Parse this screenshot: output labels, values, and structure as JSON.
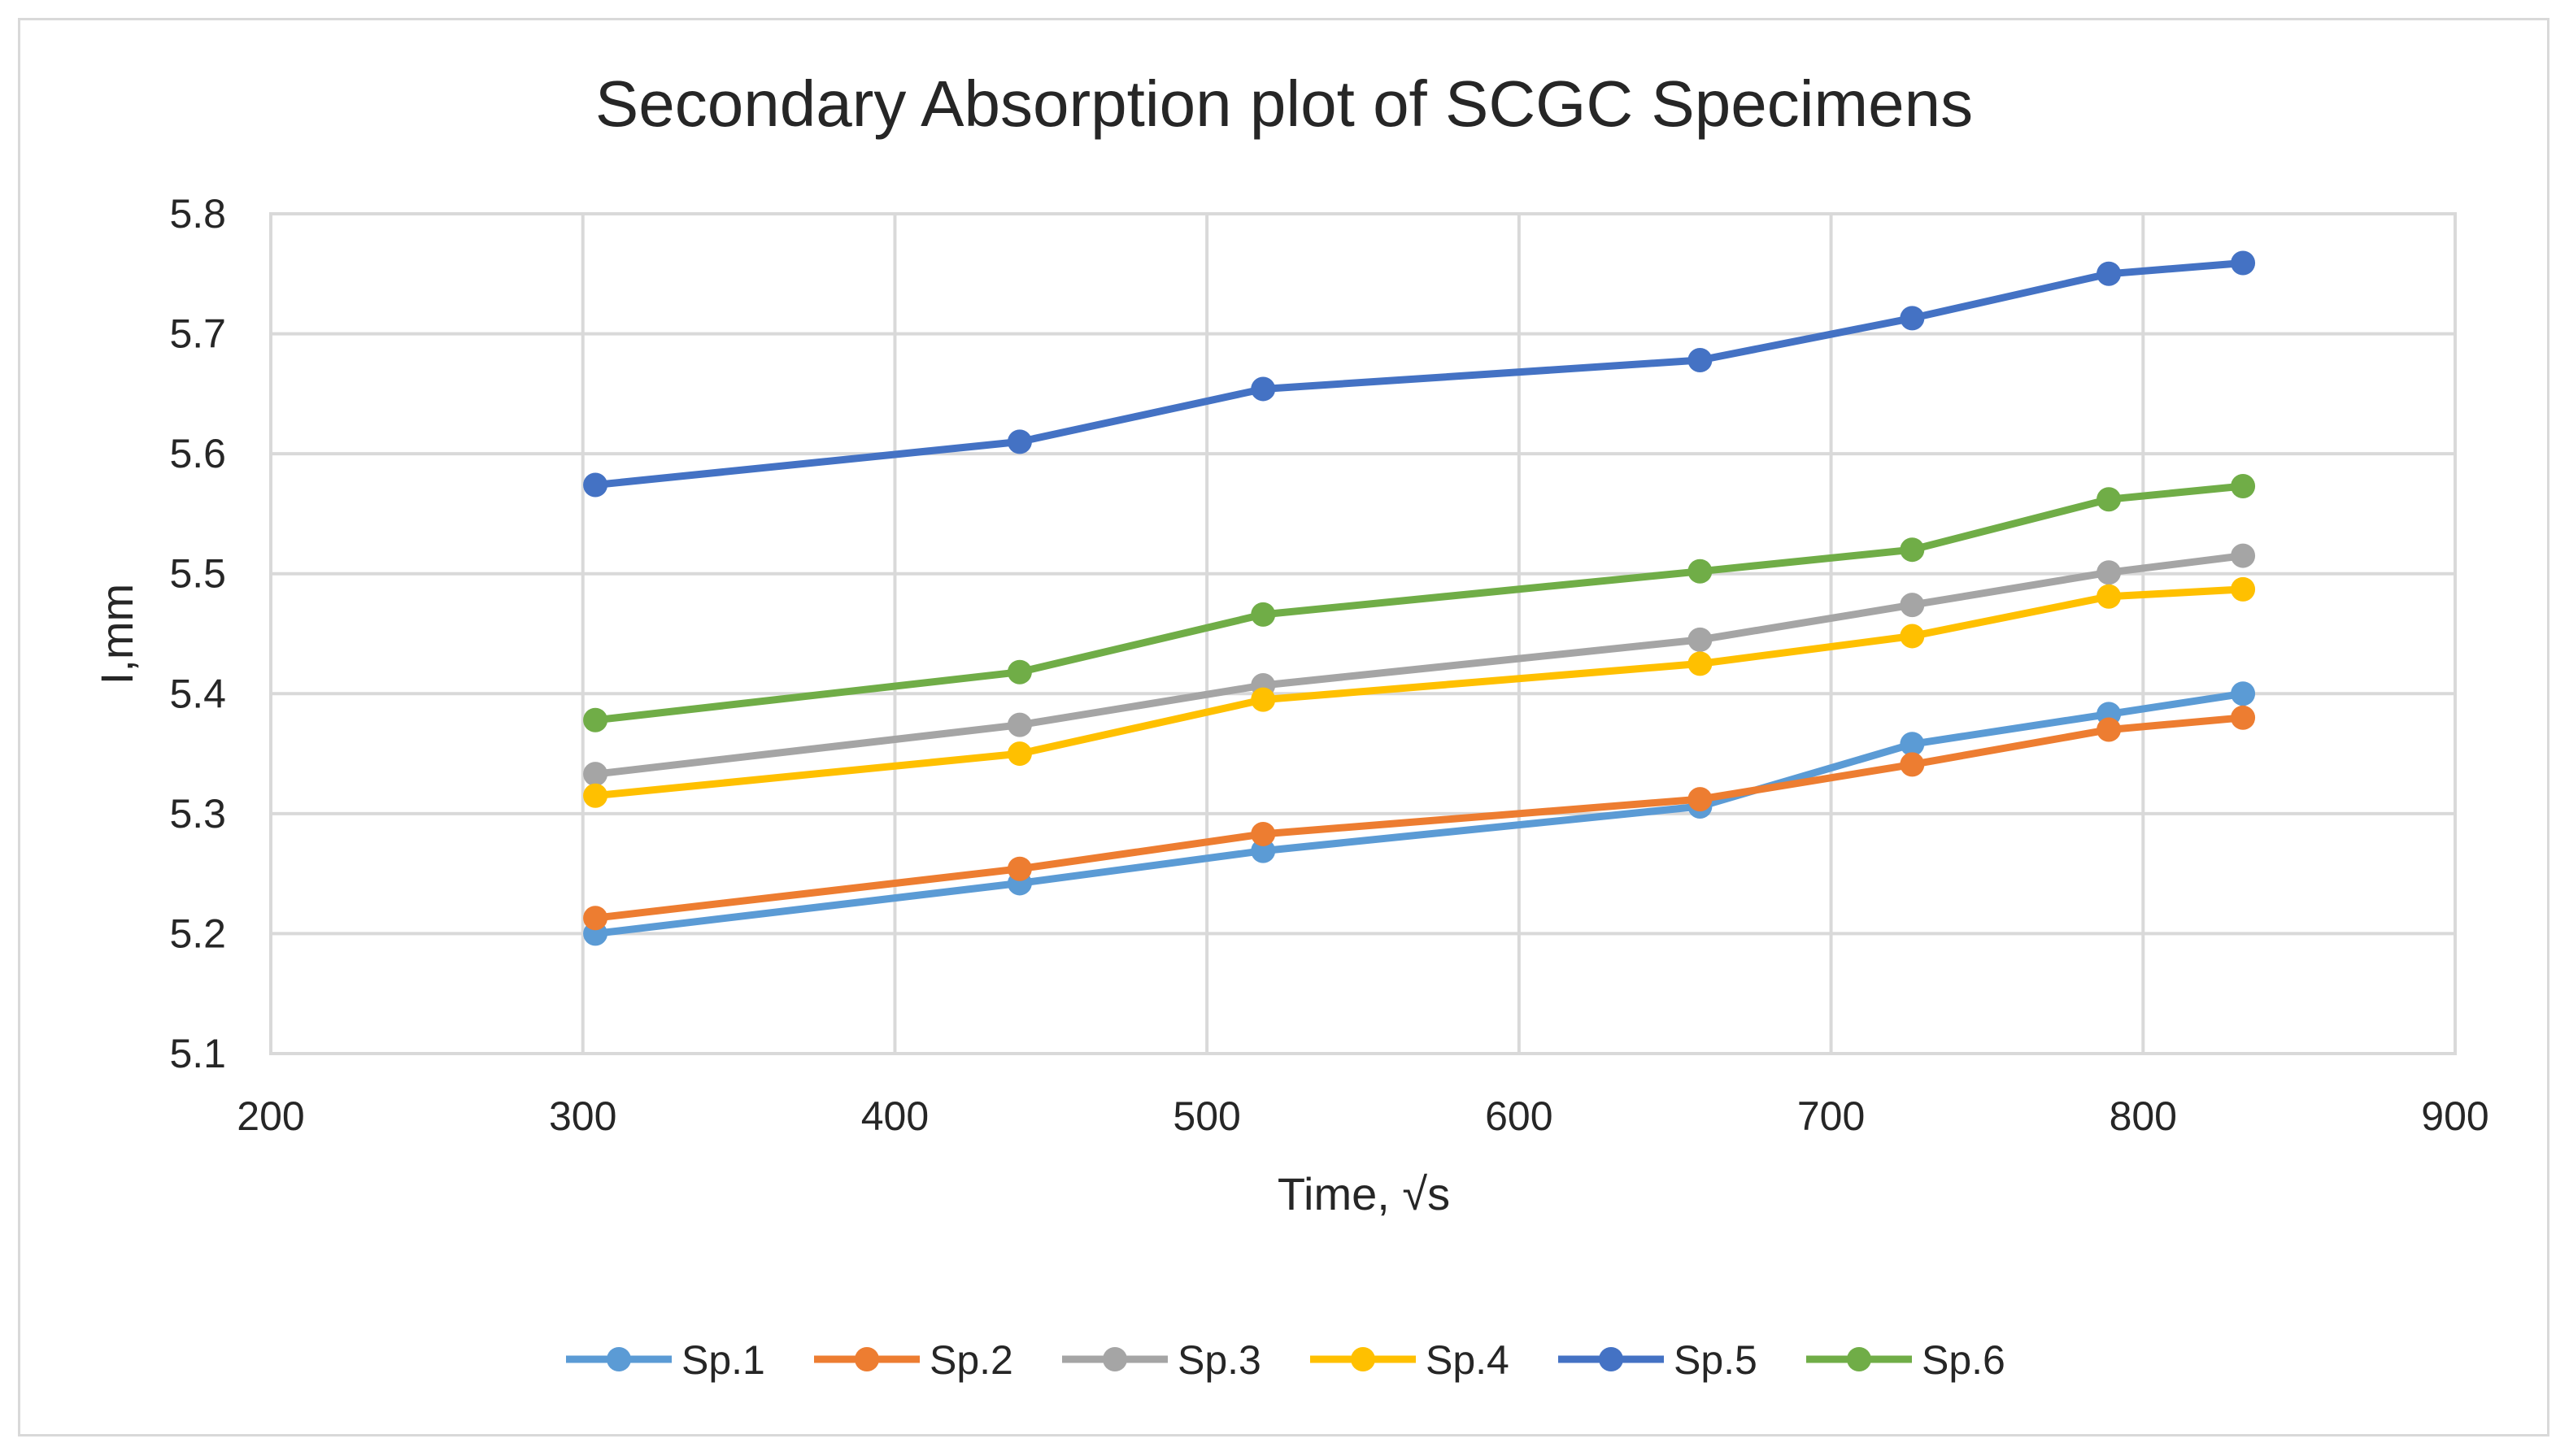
{
  "chart_data": {
    "type": "line",
    "title": "Secondary Absorption plot of SCGC Specimens",
    "xlabel": "Time, √s",
    "ylabel": "I,mm",
    "xlim": [
      200,
      900
    ],
    "ylim": [
      5.1,
      5.8
    ],
    "xticks": [
      "200",
      "300",
      "400",
      "500",
      "600",
      "700",
      "800",
      "900"
    ],
    "yticks": [
      "5.1",
      "5.2",
      "5.3",
      "5.4",
      "5.5",
      "5.6",
      "5.7",
      "5.8"
    ],
    "grid": true,
    "legend_position": "bottom",
    "x": [
      304,
      440,
      518,
      658,
      726,
      789,
      832
    ],
    "series": [
      {
        "name": "Sp.1",
        "color": "#5b9bd5",
        "values": [
          5.2,
          5.242,
          5.269,
          5.306,
          5.358,
          5.383,
          5.4
        ]
      },
      {
        "name": "Sp.2",
        "color": "#ed7d31",
        "values": [
          5.213,
          5.254,
          5.283,
          5.312,
          5.341,
          5.37,
          5.38
        ]
      },
      {
        "name": "Sp.3",
        "color": "#a5a5a5",
        "values": [
          5.333,
          5.374,
          5.407,
          5.445,
          5.474,
          5.501,
          5.515
        ]
      },
      {
        "name": "Sp.4",
        "color": "#ffc000",
        "values": [
          5.315,
          5.35,
          5.395,
          5.425,
          5.448,
          5.481,
          5.487
        ]
      },
      {
        "name": "Sp.5",
        "color": "#4472c4",
        "values": [
          5.574,
          5.61,
          5.654,
          5.678,
          5.713,
          5.75,
          5.759
        ]
      },
      {
        "name": "Sp.6",
        "color": "#70ad47",
        "values": [
          5.378,
          5.418,
          5.466,
          5.502,
          5.52,
          5.562,
          5.573
        ]
      }
    ]
  }
}
